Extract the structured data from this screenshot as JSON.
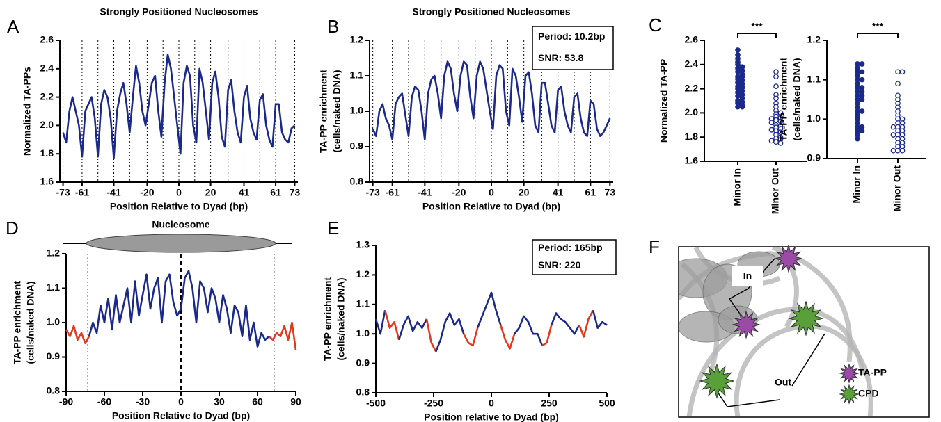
{
  "chart_data": [
    {
      "panel": "A",
      "type": "line",
      "title": "Strongly Positioned Nucleosomes",
      "xlabel": "Position Relative to Dyad (bp)",
      "ylabel": [
        "Normalized TA-PPs"
      ],
      "xlim": [
        -75,
        75
      ],
      "ylim": [
        1.6,
        2.6
      ],
      "xticks": [
        -73,
        -61,
        -41,
        -20,
        0,
        20,
        41,
        61,
        73
      ],
      "yticks": [
        1.6,
        1.8,
        {
          "value": 2,
          "label": "2.0"
        },
        2.2,
        2.4,
        2.6
      ],
      "vlines": [
        -73,
        -61,
        -51,
        -41,
        -31,
        -20,
        -10,
        0,
        10,
        20,
        31,
        41,
        51,
        61,
        73
      ],
      "color": "#1b2a8a",
      "x": [
        -73,
        -71,
        -69,
        -67,
        -65,
        -63,
        -61,
        -59,
        -57,
        -55,
        -53,
        -51,
        -49,
        -47,
        -45,
        -43,
        -41,
        -39,
        -37,
        -35,
        -33,
        -31,
        -29,
        -27,
        -25,
        -23,
        -21,
        -19,
        -17,
        -15,
        -13,
        -11,
        -9,
        -7,
        -5,
        -3,
        -1,
        1,
        3,
        5,
        7,
        9,
        11,
        13,
        15,
        17,
        19,
        21,
        23,
        25,
        27,
        29,
        31,
        33,
        35,
        37,
        39,
        41,
        43,
        45,
        47,
        49,
        51,
        53,
        55,
        57,
        59,
        61,
        63,
        65,
        67,
        69,
        71,
        73
      ],
      "values": [
        1.95,
        1.88,
        2.1,
        2.2,
        2.1,
        2.0,
        1.78,
        2.1,
        2.15,
        2.2,
        2.05,
        1.78,
        2.15,
        2.25,
        2.2,
        2.05,
        1.77,
        2.1,
        2.22,
        2.3,
        2.15,
        1.95,
        2.2,
        2.42,
        2.3,
        2.1,
        2.0,
        2.15,
        2.3,
        2.35,
        2.1,
        1.92,
        2.3,
        2.5,
        2.4,
        2.2,
        2.0,
        1.8,
        2.3,
        2.42,
        2.35,
        2.0,
        1.88,
        2.4,
        2.3,
        2.1,
        1.9,
        2.3,
        2.38,
        2.2,
        1.92,
        1.85,
        2.25,
        2.32,
        2.1,
        1.95,
        1.88,
        2.2,
        2.28,
        2.05,
        1.95,
        1.9,
        2.18,
        2.22,
        2.0,
        1.9,
        1.85,
        2.15,
        2.15,
        1.95,
        1.9,
        1.88,
        1.98,
        2.0
      ]
    },
    {
      "panel": "B",
      "type": "line",
      "title": "Strongly Positioned Nucleosomes",
      "xlabel": "Position Relative to Dyad (bp)",
      "ylabel": [
        "TA-PP enrichment",
        "(cells/naked DNA)"
      ],
      "annotation": [
        "Period: 10.2bp",
        "SNR: 53.8"
      ],
      "xlim": [
        -75,
        75
      ],
      "ylim": [
        0.8,
        1.2
      ],
      "xticks": [
        -73,
        -61,
        -41,
        -20,
        0,
        20,
        41,
        61,
        73
      ],
      "yticks": [
        0.8,
        0.9,
        {
          "value": 1,
          "label": "1.0"
        },
        1.1,
        1.2
      ],
      "vlines": [
        -73,
        -61,
        -51,
        -41,
        -31,
        -20,
        -10,
        0,
        10,
        20,
        31,
        41,
        51,
        61,
        73
      ],
      "color": "#1b2a8a",
      "x": [
        -73,
        -71,
        -69,
        -67,
        -65,
        -63,
        -61,
        -59,
        -57,
        -55,
        -53,
        -51,
        -49,
        -47,
        -45,
        -43,
        -41,
        -39,
        -37,
        -35,
        -33,
        -31,
        -29,
        -27,
        -25,
        -23,
        -21,
        -19,
        -17,
        -15,
        -13,
        -11,
        -9,
        -7,
        -5,
        -3,
        -1,
        1,
        3,
        5,
        7,
        9,
        11,
        13,
        15,
        17,
        19,
        21,
        23,
        25,
        27,
        29,
        31,
        33,
        35,
        37,
        39,
        41,
        43,
        45,
        47,
        49,
        51,
        53,
        55,
        57,
        59,
        61,
        63,
        65,
        67,
        69,
        71,
        73
      ],
      "values": [
        0.95,
        0.93,
        1.0,
        1.02,
        0.98,
        0.96,
        0.92,
        1.02,
        1.04,
        1.05,
        0.99,
        0.93,
        1.04,
        1.07,
        1.06,
        1.0,
        0.92,
        1.05,
        1.09,
        1.1,
        1.05,
        0.98,
        1.1,
        1.14,
        1.12,
        1.05,
        1.0,
        1.1,
        1.14,
        1.13,
        1.04,
        0.98,
        1.1,
        1.14,
        1.12,
        1.06,
        1.0,
        0.95,
        1.1,
        1.13,
        1.12,
        1.0,
        0.96,
        1.12,
        1.1,
        1.04,
        0.97,
        1.1,
        1.11,
        1.05,
        0.96,
        0.94,
        1.08,
        1.08,
        1.02,
        0.96,
        0.94,
        1.06,
        1.07,
        1.0,
        0.96,
        0.94,
        1.04,
        1.05,
        0.98,
        0.94,
        0.93,
        1.03,
        1.02,
        0.95,
        0.93,
        0.94,
        0.96,
        0.98
      ]
    },
    {
      "panel": "C",
      "type": "strip",
      "ylabel": [
        "Normalized TA-PP"
      ],
      "ylim": [
        1.6,
        2.6
      ],
      "yticks": [
        1.6,
        1.8,
        {
          "value": 2,
          "label": "2.0"
        },
        2.2,
        2.4,
        2.6
      ],
      "categories": [
        "Minor In",
        "Minor Out"
      ],
      "markers": [
        "filled",
        "open"
      ],
      "significance": "***",
      "color": "#1b2a8a",
      "values": [
        [
          2.52,
          2.48,
          2.45,
          2.42,
          2.4,
          2.38,
          2.37,
          2.35,
          2.34,
          2.32,
          2.3,
          2.3,
          2.28,
          2.27,
          2.25,
          2.24,
          2.22,
          2.21,
          2.2,
          2.18,
          2.17,
          2.15,
          2.14,
          2.12,
          2.1,
          2.09,
          2.08,
          2.06,
          2.05,
          2.05
        ],
        [
          2.34,
          2.3,
          2.22,
          2.15,
          2.12,
          2.08,
          2.05,
          2.02,
          2.0,
          1.99,
          1.97,
          1.96,
          1.95,
          1.94,
          1.93,
          1.92,
          1.9,
          1.89,
          1.88,
          1.87,
          1.86,
          1.85,
          1.84,
          1.82,
          1.8,
          1.79,
          1.78,
          1.77,
          1.76,
          1.75
        ]
      ]
    },
    {
      "type": "strip",
      "ylabel": [
        "TA-PP enrichment",
        "(cells/naked DNA)"
      ],
      "ylim": [
        0.9,
        1.2
      ],
      "yticks": [
        0.9,
        {
          "value": 1,
          "label": "1.0"
        },
        1.1,
        1.2
      ],
      "categories": [
        "Minor In",
        "Minor Out"
      ],
      "markers": [
        "filled",
        "open"
      ],
      "significance": "***",
      "color": "#1b2a8a",
      "values": [
        [
          1.14,
          1.14,
          1.13,
          1.12,
          1.12,
          1.11,
          1.1,
          1.1,
          1.09,
          1.08,
          1.08,
          1.07,
          1.07,
          1.06,
          1.06,
          1.05,
          1.05,
          1.04,
          1.03,
          1.02,
          1.02,
          1.01,
          1.0,
          0.99,
          0.98,
          0.98,
          0.97,
          0.97,
          0.96,
          0.95
        ],
        [
          1.12,
          1.12,
          1.09,
          1.06,
          1.05,
          1.04,
          1.03,
          1.02,
          1.01,
          1.0,
          1.0,
          0.99,
          0.99,
          0.98,
          0.98,
          0.98,
          0.97,
          0.97,
          0.96,
          0.96,
          0.96,
          0.95,
          0.95,
          0.94,
          0.94,
          0.93,
          0.93,
          0.92,
          0.92,
          0.92
        ]
      ]
    },
    {
      "panel": "D",
      "type": "line",
      "band_label": "Nucleosome",
      "xlabel": "Position Relative to Dyad (bp)",
      "ylabel": [
        "TA-PP enrichment",
        "(cells/naked DNA)"
      ],
      "xlim": [
        -90,
        90
      ],
      "ylim": [
        0.8,
        1.2
      ],
      "xticks": [
        -90,
        -60,
        -30,
        0,
        30,
        60,
        90
      ],
      "yticks": [
        0.8,
        0.9,
        {
          "value": 1,
          "label": "1.0"
        },
        1.1,
        1.2
      ],
      "vlines": [
        -73,
        73
      ],
      "dashed_vlines": [
        0
      ],
      "color": "#1b2a8a",
      "highlight_color": "#e2391b",
      "highlight_ranges": [
        [
          -90,
          -72
        ],
        [
          72,
          90
        ]
      ],
      "x": [
        -90,
        -87,
        -84,
        -81,
        -78,
        -75,
        -72,
        -69,
        -66,
        -63,
        -60,
        -57,
        -54,
        -51,
        -48,
        -45,
        -42,
        -39,
        -36,
        -33,
        -30,
        -27,
        -24,
        -21,
        -18,
        -15,
        -12,
        -9,
        -6,
        -3,
        0,
        3,
        6,
        9,
        12,
        15,
        18,
        21,
        24,
        27,
        30,
        33,
        36,
        39,
        42,
        45,
        48,
        51,
        54,
        57,
        60,
        63,
        66,
        69,
        72,
        75,
        78,
        81,
        84,
        87,
        90
      ],
      "values": [
        0.98,
        0.96,
        0.99,
        0.95,
        0.97,
        0.94,
        0.96,
        1.0,
        0.97,
        1.05,
        1.0,
        1.07,
        0.98,
        1.08,
        1.0,
        1.05,
        1.1,
        1.0,
        1.12,
        1.02,
        1.08,
        1.14,
        1.04,
        1.1,
        1.13,
        1.0,
        1.12,
        1.14,
        1.06,
        1.02,
        1.04,
        1.13,
        1.15,
        1.1,
        1.0,
        1.12,
        1.1,
        1.03,
        1.1,
        1.07,
        1.0,
        1.08,
        1.04,
        0.97,
        1.05,
        1.03,
        0.96,
        1.05,
        0.95,
        1.0,
        0.93,
        0.97,
        0.95,
        0.96,
        0.95,
        0.97,
        0.96,
        0.99,
        0.95,
        1.0,
        0.92
      ]
    },
    {
      "panel": "E",
      "type": "line",
      "xlabel": "Position relative to Dyad (bp)",
      "ylabel": [
        "TA-PP enrichment",
        "(cells/naked DNA)"
      ],
      "annotation": [
        "Period: 165bp",
        "SNR: 220"
      ],
      "xlim": [
        -500,
        500
      ],
      "ylim": [
        0.8,
        1.3
      ],
      "xticks": [
        -500,
        -250,
        0,
        250,
        500
      ],
      "yticks": [
        0.8,
        0.9,
        {
          "value": 1,
          "label": "1.0"
        },
        1.1,
        1.2,
        1.3
      ],
      "color": "#1b2a8a",
      "highlight_color": "#e2391b",
      "highlight_ranges": [
        [
          -440,
          -400
        ],
        [
          -260,
          -240
        ],
        [
          -100,
          -60
        ],
        [
          60,
          100
        ],
        [
          240,
          260
        ],
        [
          400,
          440
        ]
      ],
      "x": [
        -500,
        -480,
        -460,
        -440,
        -420,
        -400,
        -380,
        -360,
        -340,
        -320,
        -300,
        -280,
        -260,
        -240,
        -220,
        -200,
        -180,
        -160,
        -140,
        -120,
        -100,
        -80,
        -60,
        -40,
        -20,
        0,
        20,
        40,
        60,
        80,
        100,
        120,
        140,
        160,
        180,
        200,
        220,
        240,
        260,
        280,
        300,
        320,
        340,
        360,
        380,
        400,
        420,
        440,
        460,
        480,
        500
      ],
      "values": [
        1.05,
        1.0,
        1.08,
        1.02,
        1.04,
        0.98,
        1.03,
        1.06,
        1.01,
        1.04,
        1.02,
        1.05,
        0.97,
        0.94,
        0.98,
        1.04,
        1.07,
        1.03,
        1.05,
        1.0,
        0.97,
        0.96,
        1.02,
        1.06,
        1.1,
        1.14,
        1.08,
        1.03,
        0.98,
        0.95,
        1.0,
        1.02,
        1.06,
        1.04,
        1.0,
        1.0,
        0.96,
        0.97,
        1.03,
        1.07,
        1.05,
        1.04,
        1.02,
        1.0,
        1.03,
        0.99,
        1.05,
        1.08,
        1.02,
        1.04,
        1.03
      ]
    }
  ],
  "diagram_f": {
    "panel": "F",
    "labels": {
      "in": "In",
      "out": "Out"
    },
    "legend": [
      {
        "label": "TA-PP",
        "color": "#9b4aa8"
      },
      {
        "label": "CPD",
        "color": "#5aa03a"
      }
    ]
  }
}
